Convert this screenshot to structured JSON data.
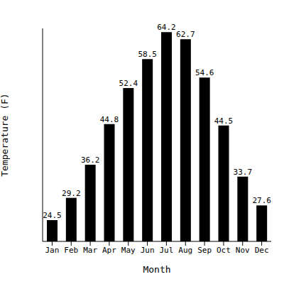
{
  "chart_data": {
    "type": "bar",
    "x_label": "Month",
    "y_label": "Temperature (F)",
    "categories": [
      "Jan",
      "Feb",
      "Mar",
      "Apr",
      "May",
      "Jun",
      "Jul",
      "Aug",
      "Sep",
      "Oct",
      "Nov",
      "Dec"
    ],
    "values": [
      24.5,
      29.2,
      36.2,
      44.8,
      52.4,
      58.5,
      64.2,
      62.7,
      54.6,
      44.5,
      33.7,
      27.6
    ],
    "color": "#000000",
    "ylim": [
      20,
      65
    ],
    "data_labels": true,
    "tick_labels": "x",
    "grid": false
  }
}
